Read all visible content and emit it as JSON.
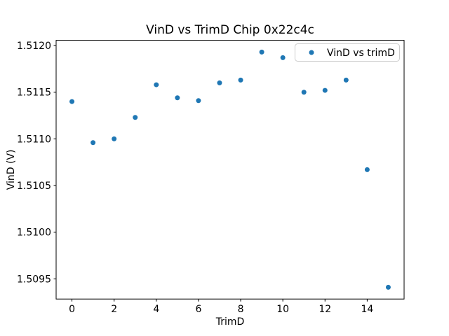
{
  "chart_data": {
    "type": "scatter",
    "title": "VinD vs TrimD Chip 0x22c4c",
    "xlabel": "TrimD",
    "ylabel": "VinD (V)",
    "grid": false,
    "legend_position": "upper right",
    "series": [
      {
        "name": "VinD vs trimD",
        "color": "#1f77b4",
        "x": [
          0,
          1,
          2,
          3,
          4,
          5,
          6,
          7,
          8,
          9,
          10,
          11,
          12,
          13,
          14,
          15
        ],
        "y": [
          1.5114,
          1.51096,
          1.511,
          1.51123,
          1.51158,
          1.51144,
          1.51141,
          1.5116,
          1.51163,
          1.51193,
          1.51187,
          1.5115,
          1.51152,
          1.51163,
          1.51067,
          1.50941
        ]
      }
    ],
    "xlim": [
      -0.75,
      15.75
    ],
    "ylim": [
      1.509284,
      1.512056
    ],
    "x_tick_values": [
      0,
      2,
      4,
      6,
      8,
      10,
      12,
      14
    ],
    "x_tick_labels": [
      "0",
      "2",
      "4",
      "6",
      "8",
      "10",
      "12",
      "14"
    ],
    "y_tick_values": [
      1.5095,
      1.51,
      1.5105,
      1.511,
      1.5115,
      1.512
    ],
    "y_tick_labels": [
      "1.5095",
      "1.5100",
      "1.5105",
      "1.5110",
      "1.5115",
      "1.5120"
    ],
    "colors": {
      "marker": "#1f77b4",
      "spine": "#000000",
      "legend_border": "#cccccc",
      "background": "#ffffff"
    }
  }
}
